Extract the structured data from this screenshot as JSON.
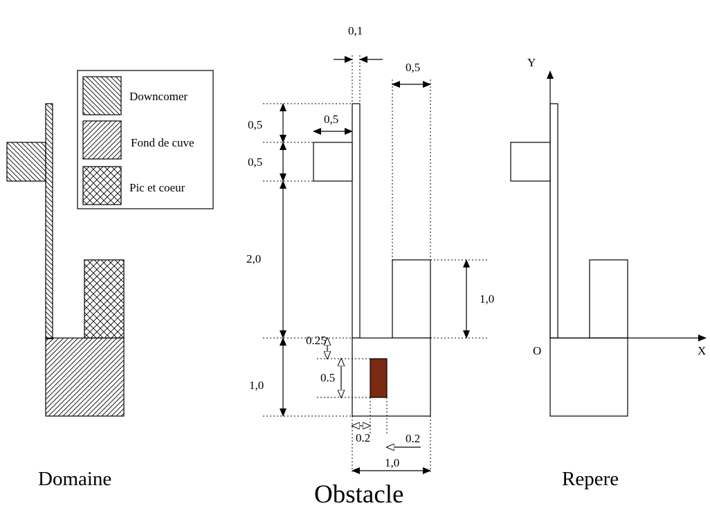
{
  "captions": {
    "domaine": "Domaine",
    "obstacle": "Obstacle",
    "repere": "Repere"
  },
  "legend": {
    "downcomer": "Downcomer",
    "fond_de_cuve": "Fond de cuve",
    "pic_et_coeur": "Pic et coeur"
  },
  "dimensions": {
    "top_gap": "0,1",
    "right_width": "0,5",
    "top_height": "0,5",
    "left_width": "0,5",
    "block_height": "0,5",
    "mid_height": "2,0",
    "right_block_height": "1,0",
    "inner_offset": "0.25",
    "inner_height": "0.5",
    "bottom_height": "1,0",
    "left_offset": "0.2",
    "right_offset": "0.2",
    "bottom_width": "1,0"
  },
  "axes": {
    "y": "Y",
    "origin": "O",
    "x": "X"
  },
  "colors": {
    "obstacle_fill": "#7a2a10",
    "line": "#000000"
  }
}
